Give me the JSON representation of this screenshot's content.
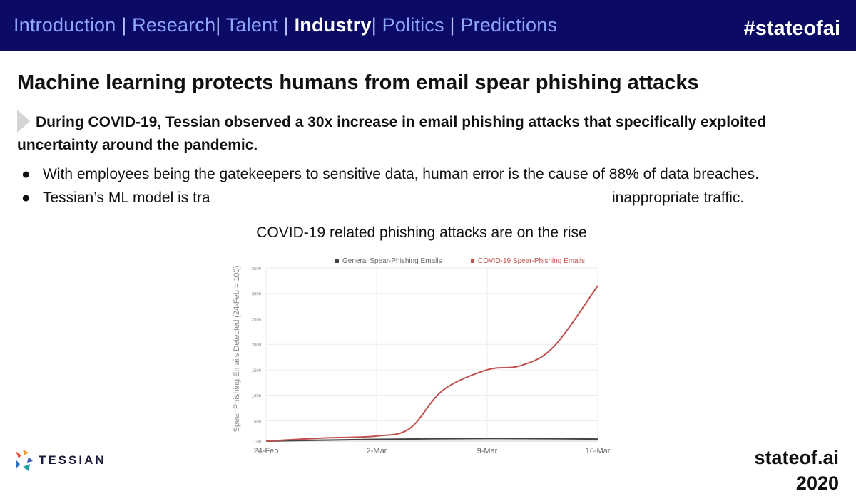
{
  "nav": {
    "items": [
      {
        "label": "Introduction",
        "active": false
      },
      {
        "label": "Research",
        "active": false
      },
      {
        "label": "Talent",
        "active": false
      },
      {
        "label": "Industry",
        "active": true
      },
      {
        "label": "Politics",
        "active": false
      },
      {
        "label": "Predictions",
        "active": false
      }
    ],
    "separator": "|",
    "hashtag": "#stateofai"
  },
  "slide": {
    "title": "Machine learning protects humans from email spear phishing attacks",
    "callout": "During COVID-19, Tessian observed a 30x increase in email phishing attacks that specifically exploited uncertainty around the pandemic.",
    "bullets": [
      "With employees being the gatekeepers to sensitive data, human error is the cause of 88% of data breaches.",
      "Tessian’s ML model is tra",
      "inappropriate traffic."
    ]
  },
  "chart_data": {
    "type": "line",
    "title": "COVID-19 related phishing attacks are on the rise",
    "ylabel": "Spear Phishing Emails Detected (24-Feb = 100)",
    "xlabel": "",
    "x": [
      "24-Feb",
      "2-Mar",
      "9-Mar",
      "16-Mar"
    ],
    "x_tick_labels": [
      "24-Feb",
      "2-Mar",
      "9-Mar",
      "16-Mar"
    ],
    "y_tick_labels": [
      "100",
      "500",
      "1000",
      "1500",
      "2000",
      "2500",
      "3000",
      "3500"
    ],
    "ylim": [
      100,
      3500
    ],
    "grid": true,
    "legend_position": "top",
    "series": [
      {
        "name": "General Spear-Phishing Emails",
        "color": "#444444",
        "points": [
          [
            0,
            100
          ],
          [
            0.5,
            120
          ],
          [
            1,
            135
          ],
          [
            1.5,
            145
          ],
          [
            2,
            150
          ],
          [
            2.5,
            148
          ],
          [
            3,
            140
          ]
        ]
      },
      {
        "name": "COVID-19 Spear-Phishing Emails",
        "color": "#c0504d",
        "points": [
          [
            0,
            100
          ],
          [
            0.5,
            160
          ],
          [
            1,
            200
          ],
          [
            1.3,
            350
          ],
          [
            1.6,
            1100
          ],
          [
            2,
            1500
          ],
          [
            2.3,
            1580
          ],
          [
            2.6,
            1950
          ],
          [
            3,
            3150
          ]
        ]
      }
    ]
  },
  "logo": {
    "text": "TESSIAN"
  },
  "footer": {
    "line1": "stateof.ai",
    "line2": "2020"
  },
  "colors": {
    "header_bg": "#0b0b66",
    "nav_text": "#8fa6ff",
    "covid_series": "#c0504d"
  }
}
